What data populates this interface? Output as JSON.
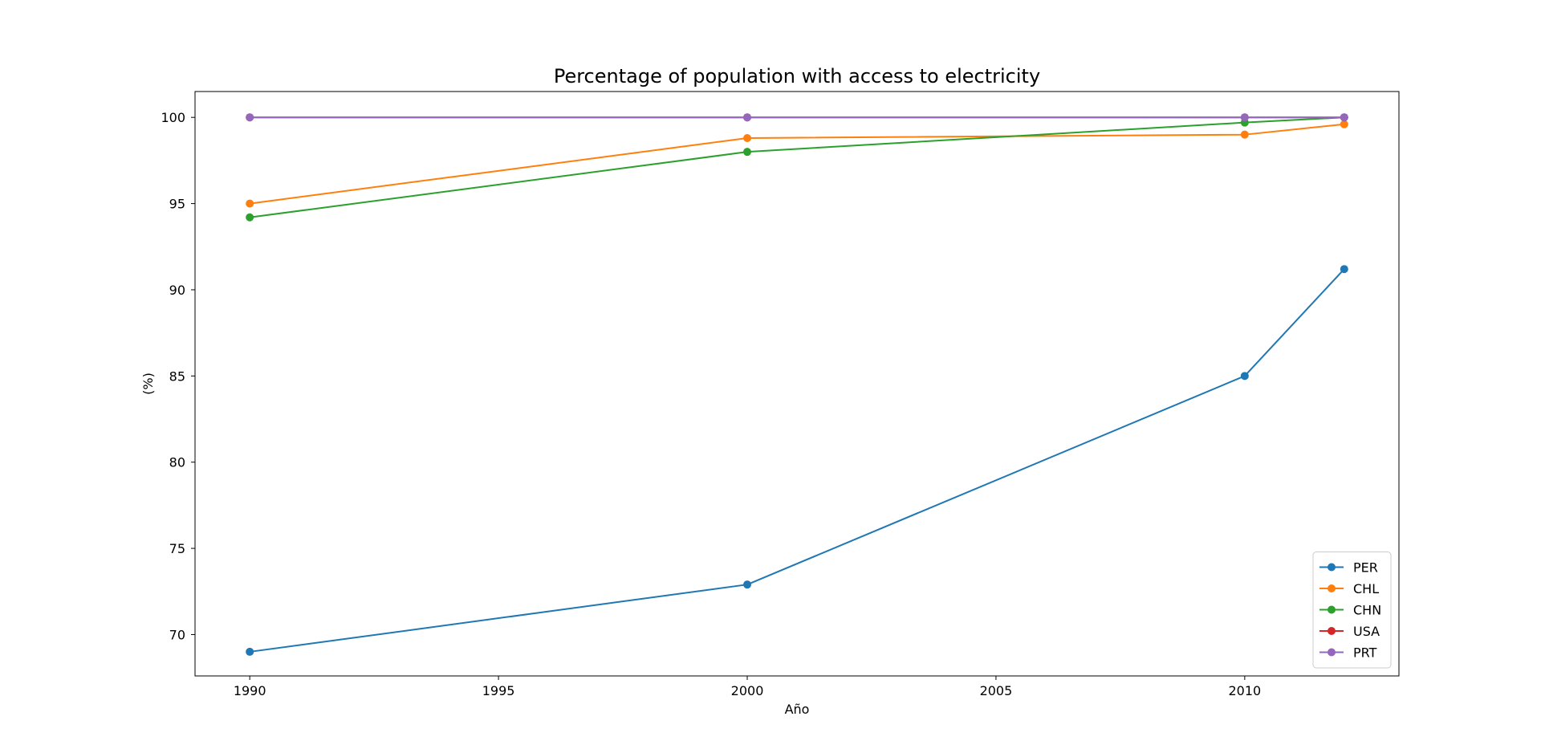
{
  "chart_data": {
    "type": "line",
    "title": "Percentage of population with access to electricity",
    "xlabel": "Año",
    "ylabel": "(%)",
    "xlim": [
      1988.9,
      2013.1
    ],
    "ylim": [
      67.6,
      101.5
    ],
    "xticks": [
      1990,
      1995,
      2000,
      2005,
      2010
    ],
    "yticks": [
      70,
      75,
      80,
      85,
      90,
      95,
      100
    ],
    "grid": false,
    "legend_position": "lower right",
    "markers": true,
    "x": [
      1990,
      2000,
      2010,
      2012
    ],
    "series": [
      {
        "name": "PER",
        "color": "#1f77b4",
        "values": [
          69.0,
          72.9,
          85.0,
          91.2
        ]
      },
      {
        "name": "CHL",
        "color": "#ff7f0e",
        "values": [
          95.0,
          98.8,
          99.0,
          99.6
        ]
      },
      {
        "name": "CHN",
        "color": "#2ca02c",
        "values": [
          94.2,
          98.0,
          99.7,
          100.0
        ]
      },
      {
        "name": "USA",
        "color": "#d62728",
        "values": [
          100.0,
          100.0,
          100.0,
          100.0
        ]
      },
      {
        "name": "PRT",
        "color": "#9467bd",
        "values": [
          100.0,
          100.0,
          100.0,
          100.0
        ]
      }
    ]
  }
}
